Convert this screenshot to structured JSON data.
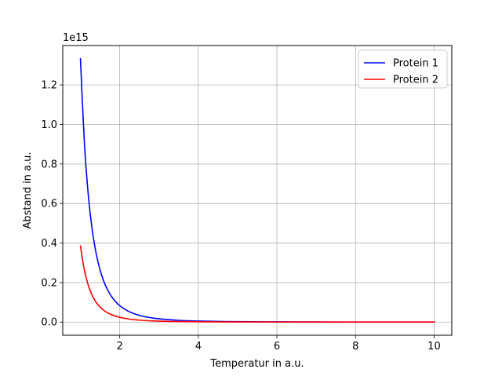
{
  "chart_data": {
    "type": "line",
    "title": "",
    "xlabel": "Temperatur in a.u.",
    "ylabel": "Abstand in a.u.",
    "y_offset_label": "1e15",
    "y_scale_factor": 1000000000000000.0,
    "xlim": [
      0.55,
      10.45
    ],
    "ylim": [
      -0.0666,
      1.3992
    ],
    "grid": true,
    "legend_position": "top-right",
    "x_ticks": [
      2,
      4,
      6,
      8,
      10
    ],
    "x_tick_labels": [
      "2",
      "4",
      "6",
      "8",
      "10"
    ],
    "y_ticks": [
      0.0,
      0.2,
      0.4,
      0.6,
      0.8,
      1.0,
      1.2
    ],
    "y_tick_labels": [
      "0.0",
      "0.2",
      "0.4",
      "0.6",
      "0.8",
      "1.0",
      "1.2"
    ],
    "x": [
      1.0,
      1.1,
      1.2,
      1.3,
      1.4,
      1.5,
      1.6,
      1.7,
      1.8,
      1.9,
      2.0,
      2.2,
      2.4,
      2.6,
      2.8,
      3.0,
      3.5,
      4.0,
      4.5,
      5.0,
      6.0,
      7.0,
      8.0,
      9.0,
      10.0
    ],
    "series": [
      {
        "name": "Protein 1",
        "color": "#0000ff",
        "values": [
          1.333,
          0.9105,
          0.6429,
          0.4667,
          0.3471,
          0.2633,
          0.2034,
          0.1596,
          0.127,
          0.1023,
          0.0833,
          0.0569,
          0.0402,
          0.0292,
          0.0217,
          0.0165,
          0.0089,
          0.0052,
          0.0033,
          0.0021,
          0.001,
          0.00056,
          0.00033,
          0.0002,
          0.00013
        ]
      },
      {
        "name": "Protein 2",
        "color": "#ff0000",
        "values": [
          0.385,
          0.263,
          0.1857,
          0.1348,
          0.1002,
          0.076,
          0.0587,
          0.0461,
          0.0367,
          0.0295,
          0.0241,
          0.0164,
          0.0116,
          0.0084,
          0.0063,
          0.0048,
          0.0026,
          0.0015,
          0.00094,
          0.00062,
          0.0003,
          0.00016,
          9.4e-05,
          5.9e-05,
          3.9e-05
        ]
      }
    ]
  }
}
